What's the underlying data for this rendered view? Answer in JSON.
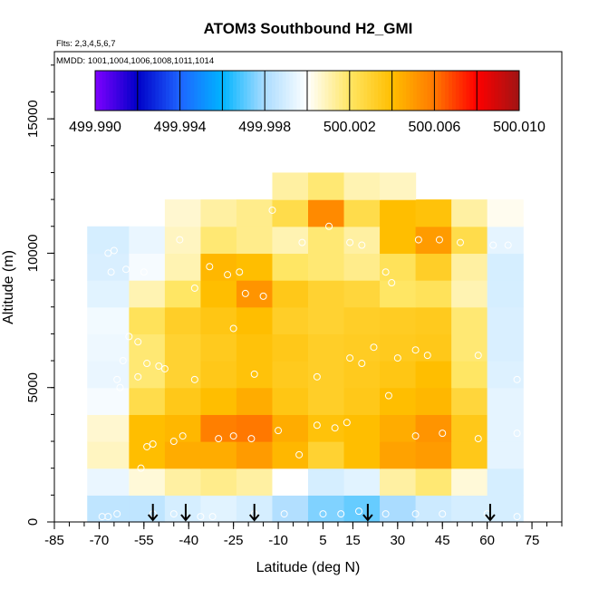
{
  "chart_data": {
    "type": "heatmap",
    "title": "ATOM3 Southbound H2_GMI",
    "subtitle_lines": [
      "Flts: 2,3,4,5,6,7",
      "MMDD: 1001,1004,1006,1008,1011,1014"
    ],
    "xlabel": "Latitude (deg N)",
    "ylabel": "Altitude (m)",
    "xlim": [
      -85,
      85
    ],
    "ylim": [
      0,
      17500
    ],
    "x_ticks": [
      -85,
      -70,
      -55,
      -40,
      -25,
      -10,
      5,
      15,
      30,
      45,
      60,
      75
    ],
    "y_ticks": [
      0,
      5000,
      10000,
      15000
    ],
    "colorbar": {
      "min": 499.99,
      "max": 500.01,
      "labels": [
        "499.990",
        "499.994",
        "499.998",
        "500.002",
        "500.006",
        "500.010"
      ],
      "colors": [
        "#7f00ff",
        "#0000c8",
        "#1e64ff",
        "#00b4ff",
        "#aadcff",
        "#ffffff",
        "#ffe664",
        "#ffbe00",
        "#ff7800",
        "#ff0000",
        "#a01414"
      ]
    },
    "flight_arrows_lat": [
      -52,
      -41,
      -18,
      20,
      61
    ],
    "field": {
      "lat_edges": [
        -74,
        -60,
        -48,
        -36,
        -24,
        -12,
        0,
        12,
        24,
        36,
        48,
        60,
        72
      ],
      "alt_edges": [
        0,
        1000,
        2000,
        3000,
        4000,
        5000,
        6000,
        7000,
        8000,
        9000,
        10000,
        11000,
        12000,
        13000
      ],
      "values": [
        [
          499.9985,
          499.9985,
          499.999,
          499.9993,
          499.999,
          499.9982,
          499.9975,
          499.9972,
          499.998,
          499.9988,
          499.999,
          499.999
        ],
        [
          499.9995,
          500.0005,
          500.0012,
          500.0015,
          500.0012,
          500.0,
          499.999,
          499.9993,
          500.0012,
          500.0018,
          500.0005,
          499.999
        ],
        [
          500.0008,
          500.004,
          500.0045,
          500.0045,
          500.005,
          500.0042,
          500.003,
          500.004,
          500.0048,
          500.005,
          500.0035,
          499.9994
        ],
        [
          500.0006,
          500.004,
          500.0042,
          500.0058,
          500.006,
          500.0045,
          500.0038,
          500.004,
          500.0045,
          500.0052,
          500.0035,
          499.9994
        ],
        [
          499.9998,
          500.0025,
          500.0035,
          500.004,
          500.0045,
          500.0036,
          500.0032,
          500.0035,
          500.004,
          500.0042,
          500.0028,
          499.9994
        ],
        [
          499.9995,
          500.0018,
          500.003,
          500.0035,
          500.0038,
          500.0034,
          500.0032,
          500.0034,
          500.0036,
          500.004,
          500.002,
          499.9992
        ],
        [
          499.9996,
          500.0018,
          500.003,
          500.0034,
          500.0038,
          500.0035,
          500.0032,
          500.0033,
          500.0034,
          500.0035,
          500.0018,
          499.9991
        ],
        [
          499.9997,
          500.0022,
          500.0032,
          500.0036,
          500.004,
          500.0032,
          500.003,
          500.0032,
          500.0033,
          500.0034,
          500.0018,
          499.9991
        ],
        [
          499.9993,
          500.001,
          500.002,
          500.004,
          500.0052,
          500.0035,
          500.003,
          500.0028,
          500.002,
          500.0022,
          500.001,
          499.999
        ],
        [
          499.9991,
          499.9998,
          500.001,
          500.0042,
          500.004,
          500.002,
          500.0018,
          500.0015,
          500.0022,
          500.0032,
          500.0012,
          499.999
        ],
        [
          499.999,
          499.9995,
          500.0008,
          500.0018,
          500.0015,
          500.001,
          500.0018,
          500.0012,
          500.004,
          500.005,
          500.0025,
          499.9994
        ],
        [
          null,
          null,
          500.0006,
          500.0012,
          500.0015,
          500.0025,
          500.0055,
          500.0025,
          500.004,
          500.0038,
          500.0012,
          500.0002
        ],
        [
          null,
          null,
          null,
          null,
          null,
          500.0012,
          500.0018,
          500.001,
          500.0008,
          null,
          null,
          null
        ]
      ]
    },
    "observations": [
      [
        -69,
        200
      ],
      [
        -67,
        200
      ],
      [
        -64,
        300
      ],
      [
        -52,
        300
      ],
      [
        -45,
        300
      ],
      [
        -36,
        200
      ],
      [
        -32,
        200
      ],
      [
        -18,
        300
      ],
      [
        -8,
        300
      ],
      [
        5,
        300
      ],
      [
        11,
        300
      ],
      [
        17,
        400
      ],
      [
        26,
        300
      ],
      [
        36,
        300
      ],
      [
        45,
        300
      ],
      [
        60,
        300
      ],
      [
        70,
        200
      ],
      [
        -56,
        2000
      ],
      [
        -54,
        2800
      ],
      [
        -52,
        2900
      ],
      [
        -45,
        3000
      ],
      [
        -42,
        3200
      ],
      [
        -30,
        3100
      ],
      [
        -25,
        3200
      ],
      [
        -19,
        3100
      ],
      [
        -10,
        3400
      ],
      [
        -3,
        2500
      ],
      [
        3,
        3600
      ],
      [
        9,
        3500
      ],
      [
        13,
        3700
      ],
      [
        27,
        4700
      ],
      [
        36,
        3200
      ],
      [
        45,
        3300
      ],
      [
        57,
        3100
      ],
      [
        70,
        3300
      ],
      [
        -63,
        5000
      ],
      [
        -64,
        5300
      ],
      [
        -57,
        5400
      ],
      [
        -48,
        5700
      ],
      [
        -38,
        5300
      ],
      [
        -18,
        5500
      ],
      [
        3,
        5400
      ],
      [
        14,
        6100
      ],
      [
        18,
        5900
      ],
      [
        22,
        6500
      ],
      [
        30,
        6100
      ],
      [
        36,
        6400
      ],
      [
        40,
        6200
      ],
      [
        57,
        6200
      ],
      [
        70,
        5300
      ],
      [
        -62,
        6000
      ],
      [
        -60,
        6900
      ],
      [
        -57,
        6700
      ],
      [
        -54,
        5900
      ],
      [
        -50,
        5800
      ],
      [
        -25,
        7200
      ],
      [
        -21,
        8500
      ],
      [
        -15,
        8400
      ],
      [
        -66,
        9300
      ],
      [
        -61,
        9400
      ],
      [
        -55,
        9300
      ],
      [
        -38,
        8700
      ],
      [
        -33,
        9500
      ],
      [
        -27,
        9200
      ],
      [
        -23,
        9300
      ],
      [
        -12,
        11600
      ],
      [
        -2,
        10400
      ],
      [
        7,
        11000
      ],
      [
        14,
        10400
      ],
      [
        18,
        10300
      ],
      [
        26,
        9300
      ],
      [
        28,
        8900
      ],
      [
        37,
        10500
      ],
      [
        44,
        10500
      ],
      [
        51,
        10400
      ],
      [
        62,
        10300
      ],
      [
        67,
        10300
      ],
      [
        -67,
        10000
      ],
      [
        -65,
        10100
      ],
      [
        -43,
        10500
      ]
    ]
  }
}
